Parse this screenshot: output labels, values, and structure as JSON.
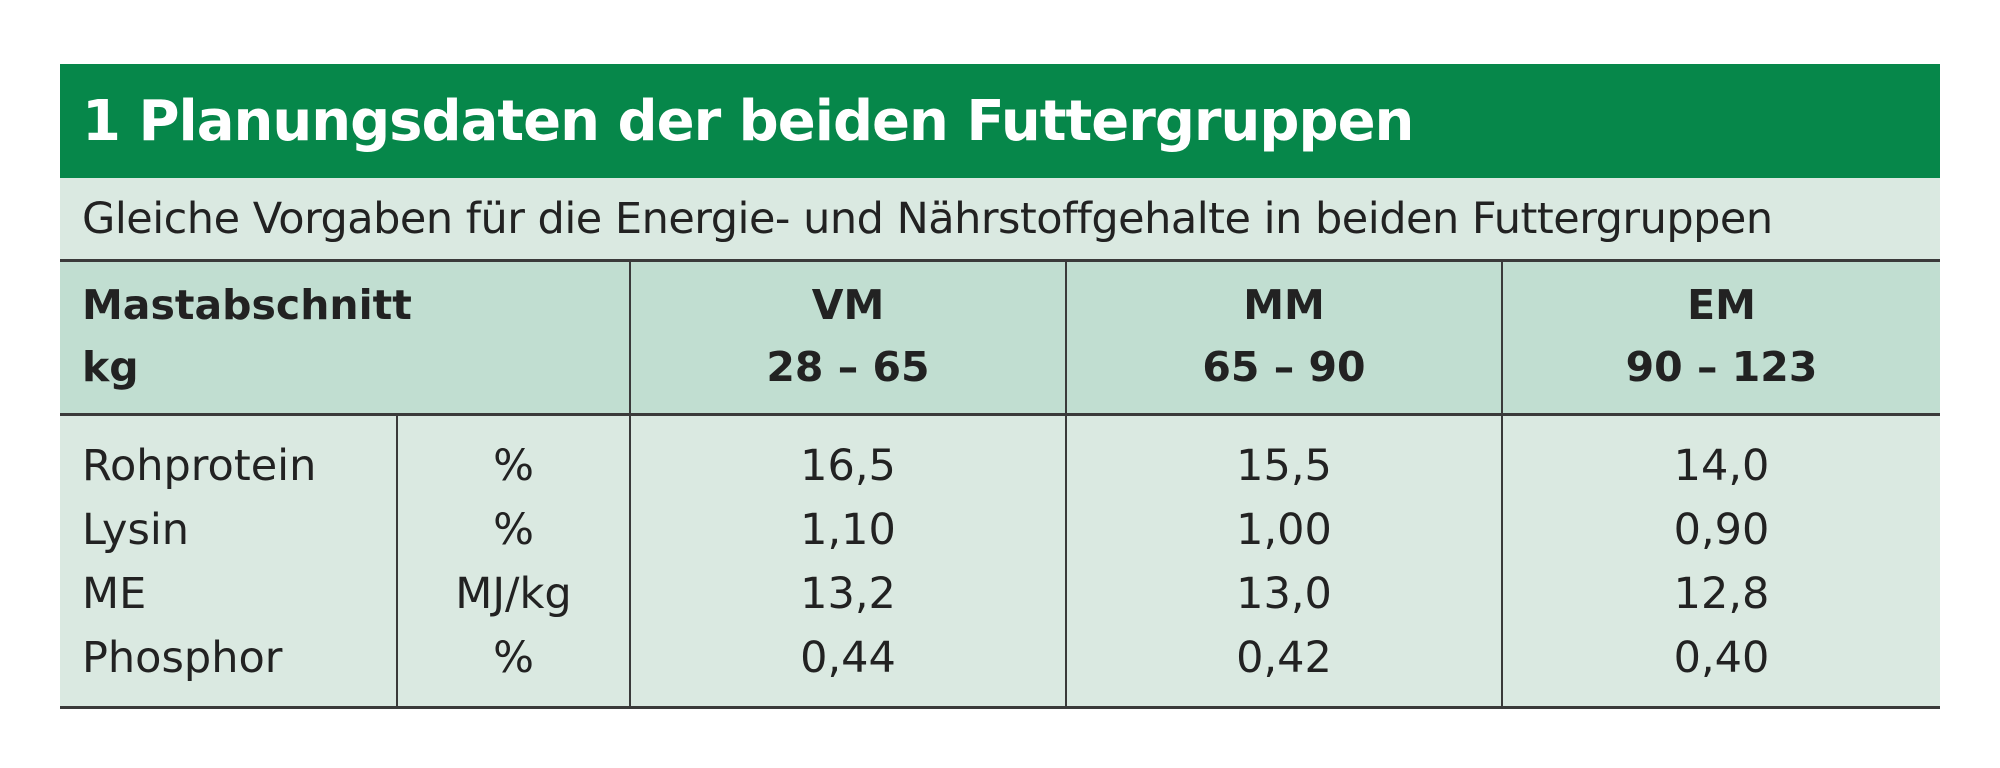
{
  "title": "1 Planungsdaten der beiden Futtergruppen",
  "subtitle": "Gleiche Vorgaben für die Energie- und Nährstoffgehalte in beiden Futtergruppen",
  "header": {
    "label_line1": "Mastabschnitt",
    "label_line2": "kg",
    "columns": [
      {
        "name": "VM",
        "range": "28 – 65"
      },
      {
        "name": "MM",
        "range": "65 – 90"
      },
      {
        "name": "EM",
        "range": "90 – 123"
      }
    ]
  },
  "rows": [
    {
      "param": "Rohprotein",
      "unit": "%",
      "values": [
        "16,5",
        "15,5",
        "14,0"
      ]
    },
    {
      "param": "Lysin",
      "unit": "%",
      "values": [
        "1,10",
        "1,00",
        "0,90"
      ]
    },
    {
      "param": "ME",
      "unit": "MJ/kg",
      "values": [
        "13,2",
        "13,0",
        "12,8"
      ]
    },
    {
      "param": "Phosphor",
      "unit": "%",
      "values": [
        "0,44",
        "0,42",
        "0,40"
      ]
    }
  ],
  "colors": {
    "title_bar": "#06874a",
    "header_bg": "#c1ded1",
    "body_bg": "#dae9e1"
  }
}
